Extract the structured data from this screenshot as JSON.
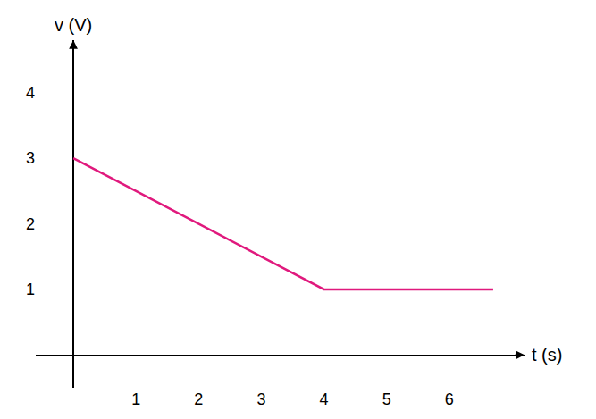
{
  "chart_data": {
    "type": "line",
    "x_label": "t (s)",
    "y_label": "v (V)",
    "x": [
      0,
      4,
      6.7
    ],
    "values": [
      3,
      1,
      1
    ],
    "color": "#e0197d",
    "xlim": [
      -0.6,
      7.2
    ],
    "ylim": [
      -0.5,
      4.8
    ],
    "xticks": [
      1,
      2,
      3,
      4,
      5,
      6
    ],
    "yticks": [
      1,
      2,
      3,
      4
    ],
    "grid": false
  }
}
